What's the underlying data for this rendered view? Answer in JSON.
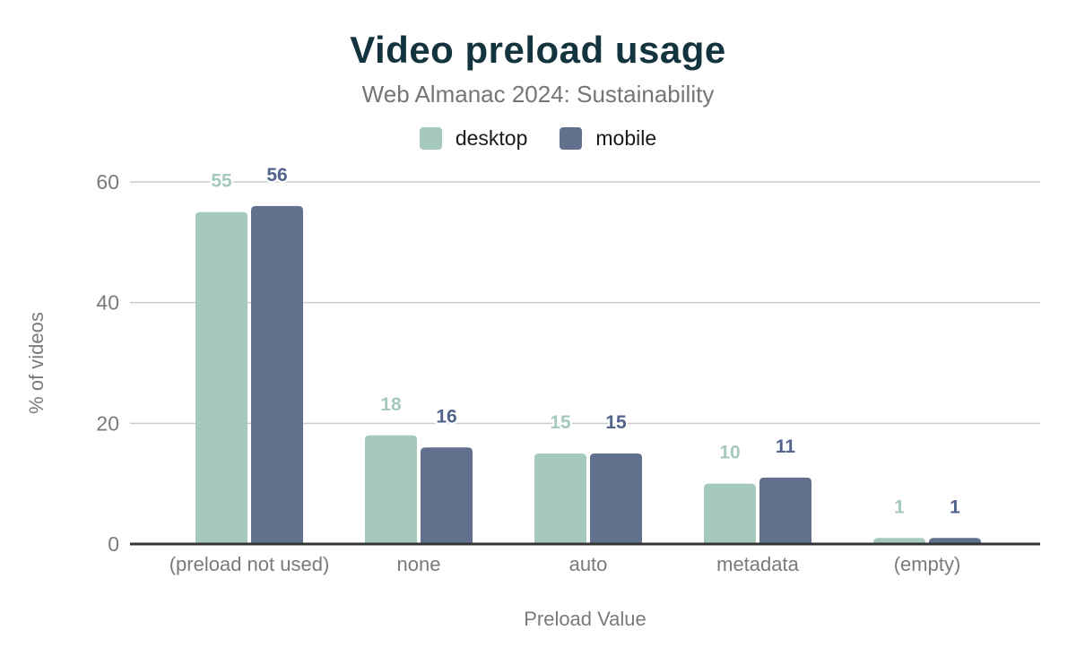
{
  "chart_data": {
    "type": "bar",
    "title": "Video preload usage",
    "subtitle": "Web Almanac 2024: Sustainability",
    "xlabel": "Preload Value",
    "ylabel": "% of videos",
    "categories": [
      "(preload not used)",
      "none",
      "auto",
      "metadata",
      "(empty)"
    ],
    "series": [
      {
        "name": "desktop",
        "values": [
          55,
          18,
          15,
          10,
          1
        ],
        "color": "#a5c9bb",
        "label_color": "#a5c9bb"
      },
      {
        "name": "mobile",
        "values": [
          56,
          16,
          15,
          11,
          1
        ],
        "color": "#61708c",
        "label_color": "#52648c"
      }
    ],
    "yticks": [
      0,
      20,
      40,
      60
    ],
    "ylim": [
      0,
      63
    ],
    "grid": "horizontal",
    "legend_position": "top",
    "value_labels": true
  },
  "colors": {
    "title": "#13343e",
    "subtitle": "#757575",
    "axis_text": "#7a7a7a",
    "gridline": "#cccccc",
    "axis_line": "#333333",
    "background": "#ffffff",
    "legend_text": "#1a1a1a"
  }
}
